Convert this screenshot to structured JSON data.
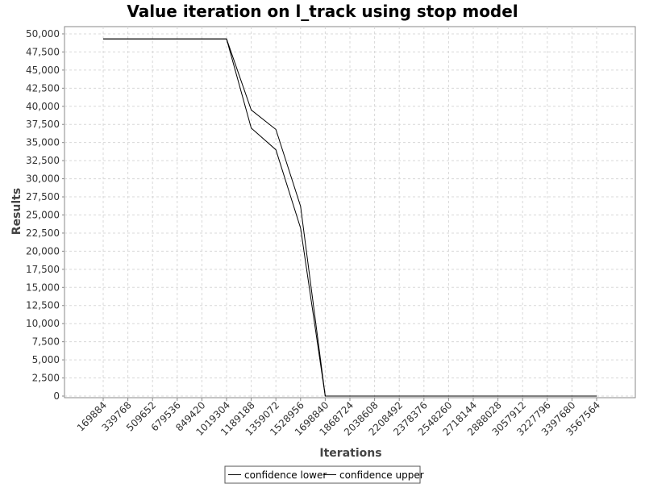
{
  "chart_data": {
    "type": "line",
    "title": "Value iteration on l_track using stop model",
    "xlabel": "Iterations",
    "ylabel": "Results",
    "categories": [
      "169884",
      "339768",
      "509652",
      "679536",
      "849420",
      "1019304",
      "1189188",
      "1359072",
      "1528956",
      "1698840",
      "1868724",
      "2038608",
      "2208492",
      "2378376",
      "2548260",
      "2718144",
      "2888028",
      "3057912",
      "3227796",
      "3397680",
      "3567564"
    ],
    "ylim": [
      0,
      51000
    ],
    "yticks": [
      0,
      2500,
      5000,
      7500,
      10000,
      12500,
      15000,
      17500,
      20000,
      22500,
      25000,
      27500,
      30000,
      32500,
      35000,
      37500,
      40000,
      42500,
      45000,
      47500,
      50000
    ],
    "ytick_labels": [
      "0",
      "2,500",
      "5,000",
      "7,500",
      "10,000",
      "12,500",
      "15,000",
      "17,500",
      "20,000",
      "22,500",
      "25,000",
      "27,500",
      "30,000",
      "32,500",
      "35,000",
      "37,500",
      "40,000",
      "42,500",
      "45,000",
      "47,500",
      "50,000"
    ],
    "grid": true,
    "legend_position": "bottom-center",
    "series": [
      {
        "name": "confidence lower",
        "color": "#000000",
        "values": [
          49300,
          49300,
          49300,
          49300,
          49300,
          49300,
          37000,
          34000,
          23200,
          0,
          0,
          0,
          0,
          0,
          0,
          0,
          0,
          0,
          0,
          0,
          0
        ]
      },
      {
        "name": "confidence upper",
        "color": "#000000",
        "values": [
          49300,
          49300,
          49300,
          49300,
          49300,
          49300,
          39500,
          36800,
          26200,
          0,
          0,
          0,
          0,
          0,
          0,
          0,
          0,
          0,
          0,
          0,
          0
        ]
      }
    ]
  }
}
